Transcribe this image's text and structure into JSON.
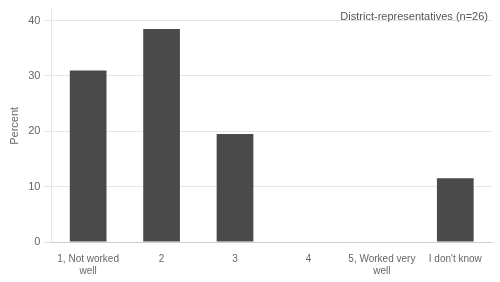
{
  "chart_data": {
    "type": "bar",
    "categories": [
      "1, Not worked\nwell",
      "2",
      "3",
      "4",
      "5, Worked very\nwell",
      "I don't know"
    ],
    "values": [
      31,
      38.5,
      19.5,
      0,
      0,
      11.5
    ],
    "color": "#4a4a4a",
    "ylabel": "Percent",
    "annotation": "District-representatives (n=26)",
    "ylim": [
      0,
      42
    ],
    "yticks": [
      0,
      10,
      20,
      30,
      40
    ],
    "grid": true
  }
}
